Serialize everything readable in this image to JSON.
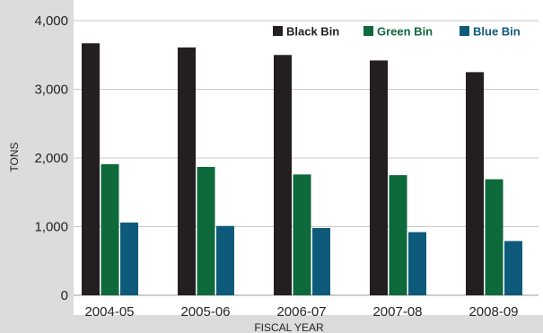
{
  "chart_data": {
    "type": "bar",
    "categories": [
      "2004-05",
      "2005-06",
      "2006-07",
      "2007-08",
      "2008-09"
    ],
    "series": [
      {
        "name": "Black Bin",
        "color": "#231f20",
        "values": [
          3670,
          3610,
          3500,
          3420,
          3250
        ]
      },
      {
        "name": "Green Bin",
        "color": "#0e6a3b",
        "values": [
          1910,
          1870,
          1760,
          1750,
          1690
        ]
      },
      {
        "name": "Blue Bin",
        "color": "#0d5a7a",
        "values": [
          1060,
          1010,
          980,
          920,
          790
        ]
      }
    ],
    "xlabel": "FISCAL YEAR",
    "ylabel": "TONS",
    "ylim": [
      0,
      4000
    ],
    "yticks": [
      0,
      1000,
      2000,
      3000,
      4000
    ],
    "ytick_labels": [
      "0",
      "1,000",
      "2,000",
      "3,000",
      "4,000"
    ],
    "grid": "horizontal",
    "legend": "top-right"
  }
}
